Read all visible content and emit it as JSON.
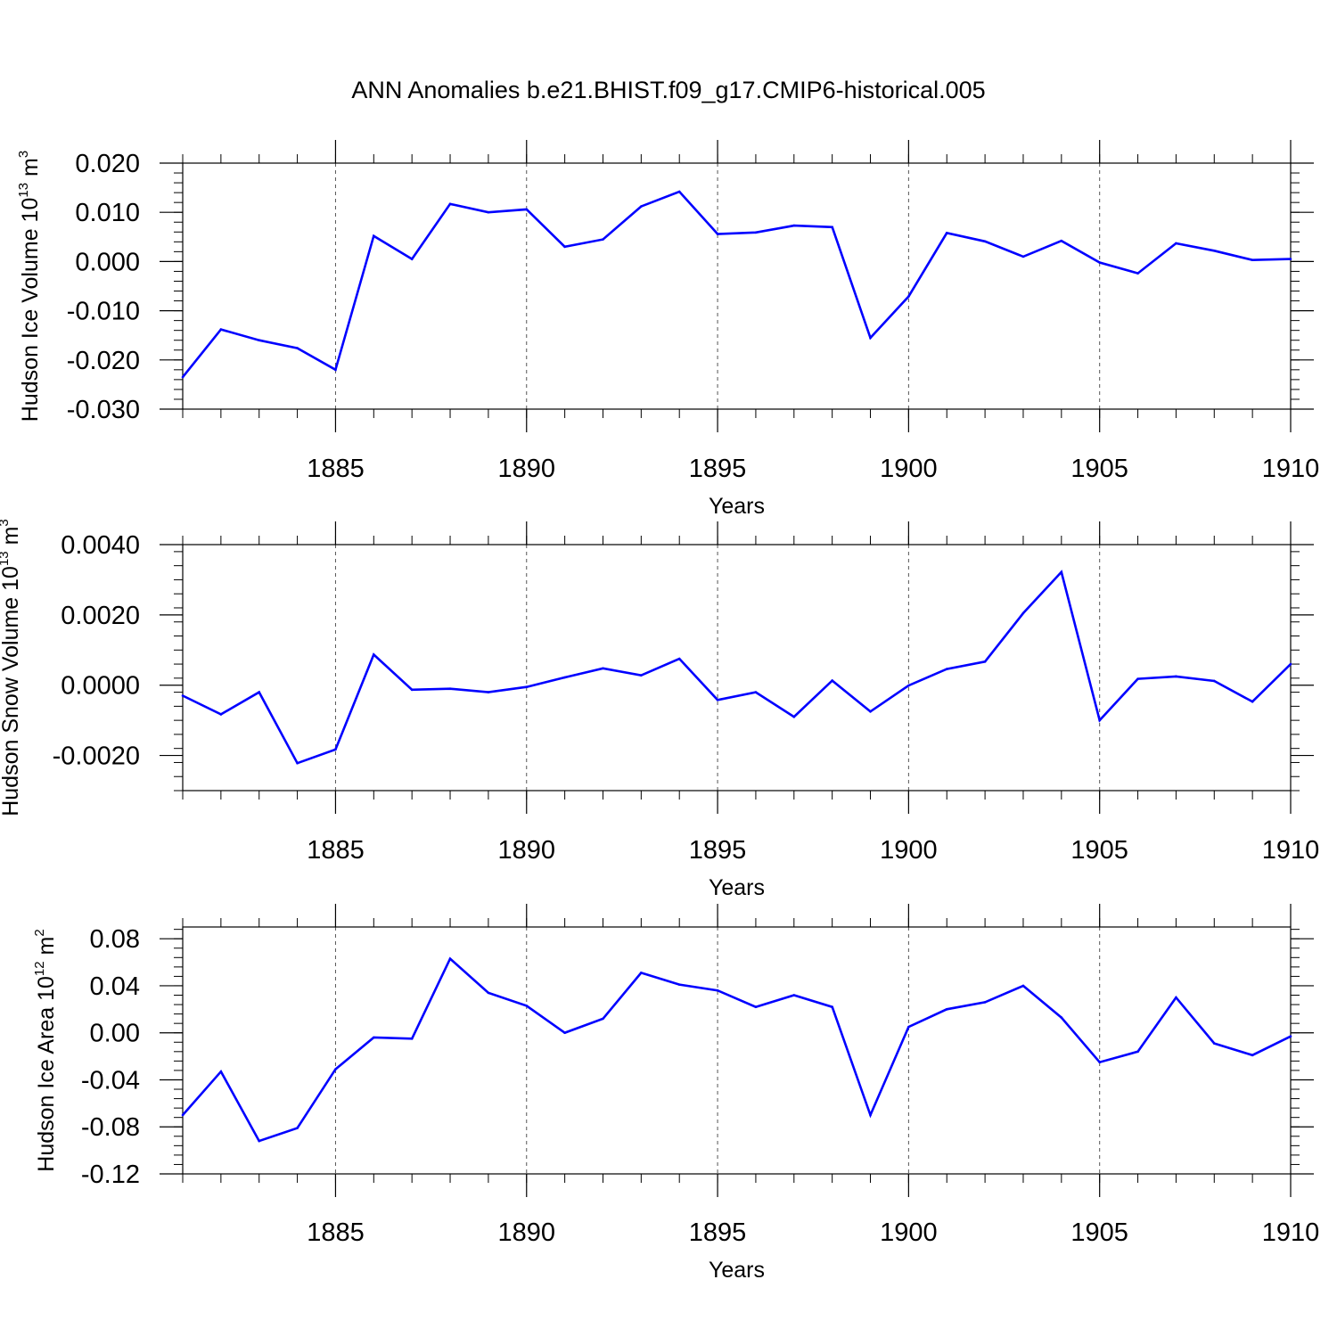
{
  "title": "ANN Anomalies b.e21.BHIST.f09_g17.CMIP6-historical.005",
  "line_color": "#0000ff",
  "chart_data": [
    {
      "type": "line",
      "ylabel": {
        "text": "Hudson Ice Volume 10",
        "sup1": "13",
        "mid": " m",
        "sup2": "3"
      },
      "xlabel": "Years",
      "xlim": [
        1881,
        1910
      ],
      "ylim": [
        -0.03,
        0.02
      ],
      "xticks": [
        1885,
        1890,
        1895,
        1900,
        1905,
        1910
      ],
      "xtick_labels": [
        "1885",
        "1890",
        "1895",
        "1900",
        "1905",
        "1910"
      ],
      "yticks": [
        -0.03,
        -0.02,
        -0.01,
        0.0,
        0.01,
        0.02
      ],
      "ytick_labels": [
        "-0.030",
        "-0.020",
        "-0.010",
        "0.000",
        "0.010",
        "0.020"
      ],
      "x": [
        1881,
        1882,
        1883,
        1884,
        1885,
        1886,
        1887,
        1888,
        1889,
        1890,
        1891,
        1892,
        1893,
        1894,
        1895,
        1896,
        1897,
        1898,
        1899,
        1900,
        1901,
        1902,
        1903,
        1904,
        1905,
        1906,
        1907,
        1908,
        1909,
        1910
      ],
      "values": [
        -0.0235,
        -0.0138,
        -0.016,
        -0.0176,
        -0.022,
        0.0052,
        0.0005,
        0.0117,
        0.01,
        0.0106,
        0.003,
        0.0045,
        0.0112,
        0.0142,
        0.0056,
        0.0059,
        0.0073,
        0.007,
        -0.0155,
        -0.0071,
        0.0058,
        0.0041,
        0.001,
        0.0042,
        -0.0002,
        -0.0024,
        0.0037,
        0.0022,
        0.0003,
        0.0005
      ]
    },
    {
      "type": "line",
      "ylabel": {
        "text": "Hudson Snow Volume 10",
        "sup1": "13",
        "mid": " m",
        "sup2": "3"
      },
      "xlabel": "Years",
      "xlim": [
        1881,
        1910
      ],
      "ylim": [
        -0.003,
        0.004
      ],
      "xticks": [
        1885,
        1890,
        1895,
        1900,
        1905,
        1910
      ],
      "xtick_labels": [
        "1885",
        "1890",
        "1895",
        "1900",
        "1905",
        "1910"
      ],
      "yticks": [
        -0.002,
        0.0,
        0.002,
        0.004
      ],
      "ytick_labels": [
        "-0.0020",
        "0.0000",
        "0.0020",
        "0.0040"
      ],
      "x": [
        1881,
        1882,
        1883,
        1884,
        1885,
        1886,
        1887,
        1888,
        1889,
        1890,
        1891,
        1892,
        1893,
        1894,
        1895,
        1896,
        1897,
        1898,
        1899,
        1900,
        1901,
        1902,
        1903,
        1904,
        1905,
        1906,
        1907,
        1908,
        1909,
        1910
      ],
      "values": [
        -0.0003,
        -0.00083,
        -0.0002,
        -0.00222,
        -0.00183,
        0.00087,
        -0.00013,
        -0.0001,
        -0.0002,
        -5e-05,
        0.00022,
        0.00048,
        0.00028,
        0.00075,
        -0.00042,
        -0.0002,
        -0.0009,
        0.00013,
        -0.00075,
        -1e-05,
        0.00046,
        0.00067,
        0.00205,
        0.00322,
        -0.001,
        0.00018,
        0.00025,
        0.00012,
        -0.00047,
        0.0006
      ]
    },
    {
      "type": "line",
      "ylabel": {
        "text": "Hudson Ice Area 10",
        "sup1": "12",
        "mid": " m",
        "sup2": "2"
      },
      "xlabel": "Years",
      "xlim": [
        1881,
        1910
      ],
      "ylim": [
        -0.12,
        0.09
      ],
      "xticks": [
        1885,
        1890,
        1895,
        1900,
        1905,
        1910
      ],
      "xtick_labels": [
        "1885",
        "1890",
        "1895",
        "1900",
        "1905",
        "1910"
      ],
      "yticks": [
        -0.12,
        -0.08,
        -0.04,
        0.0,
        0.04,
        0.08
      ],
      "ytick_labels": [
        "-0.12",
        "-0.08",
        "-0.04",
        "0.00",
        "0.04",
        "0.08"
      ],
      "x": [
        1881,
        1882,
        1883,
        1884,
        1885,
        1886,
        1887,
        1888,
        1889,
        1890,
        1891,
        1892,
        1893,
        1894,
        1895,
        1896,
        1897,
        1898,
        1899,
        1900,
        1901,
        1902,
        1903,
        1904,
        1905,
        1906,
        1907,
        1908,
        1909,
        1910
      ],
      "values": [
        -0.07,
        -0.033,
        -0.092,
        -0.081,
        -0.031,
        -0.004,
        -0.005,
        0.063,
        0.034,
        0.023,
        0.0,
        0.012,
        0.051,
        0.041,
        0.036,
        0.022,
        0.032,
        0.022,
        -0.07,
        0.005,
        0.02,
        0.026,
        0.04,
        0.013,
        -0.025,
        -0.016,
        0.03,
        -0.009,
        -0.019,
        -0.003
      ]
    }
  ]
}
